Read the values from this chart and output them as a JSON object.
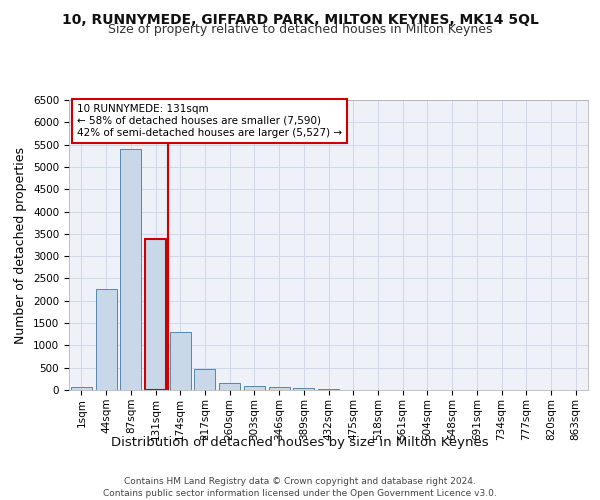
{
  "title_line1": "10, RUNNYMEDE, GIFFARD PARK, MILTON KEYNES, MK14 5QL",
  "title_line2": "Size of property relative to detached houses in Milton Keynes",
  "xlabel": "Distribution of detached houses by size in Milton Keynes",
  "ylabel": "Number of detached properties",
  "footer": "Contains HM Land Registry data © Crown copyright and database right 2024.\nContains public sector information licensed under the Open Government Licence v3.0.",
  "bar_labels": [
    "1sqm",
    "44sqm",
    "87sqm",
    "131sqm",
    "174sqm",
    "217sqm",
    "260sqm",
    "303sqm",
    "346sqm",
    "389sqm",
    "432sqm",
    "475sqm",
    "518sqm",
    "561sqm",
    "604sqm",
    "648sqm",
    "691sqm",
    "734sqm",
    "777sqm",
    "820sqm",
    "863sqm"
  ],
  "bar_values": [
    70,
    2270,
    5400,
    3380,
    1290,
    480,
    165,
    90,
    70,
    40,
    20,
    10,
    5,
    3,
    2,
    1,
    1,
    1,
    1,
    1,
    1
  ],
  "bar_color": "#c8d8e8",
  "bar_edge_color": "#5588aa",
  "highlight_bar_index": 3,
  "vline_color": "#cc0000",
  "annotation_text": "10 RUNNYMEDE: 131sqm\n← 58% of detached houses are smaller (7,590)\n42% of semi-detached houses are larger (5,527) →",
  "annotation_box_color": "#ffffff",
  "annotation_box_edge_color": "#cc0000",
  "ylim": [
    0,
    6500
  ],
  "yticks": [
    0,
    500,
    1000,
    1500,
    2000,
    2500,
    3000,
    3500,
    4000,
    4500,
    5000,
    5500,
    6000,
    6500
  ],
  "grid_color": "#d0d8e8",
  "bg_color": "#eef2f8",
  "title_fontsize": 10,
  "subtitle_fontsize": 9,
  "axis_label_fontsize": 9,
  "tick_fontsize": 7.5,
  "footer_fontsize": 6.5,
  "annot_fontsize": 7.5
}
